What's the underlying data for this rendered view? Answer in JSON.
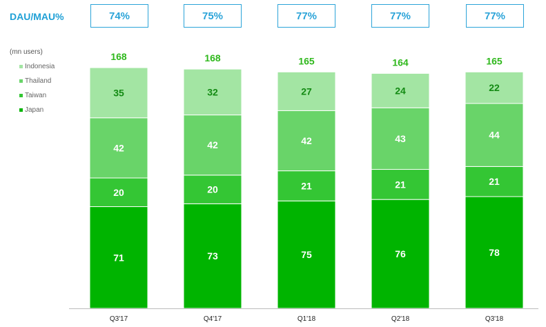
{
  "header": {
    "dau_mau_label": "DAU/MAU%"
  },
  "unit_label": "(mn users)",
  "colors": {
    "accent": "#2aa3d8",
    "Japan": "#00b400",
    "Taiwan": "#34c634",
    "Thailand": "#69d469",
    "Indonesia": "#a3e5a3",
    "total_text": "#2fb81c"
  },
  "chart_data": {
    "type": "bar",
    "stacked": true,
    "categories": [
      "Q3'17",
      "Q4'17",
      "Q1'18",
      "Q2'18",
      "Q3'18"
    ],
    "series": [
      {
        "name": "Japan",
        "values": [
          71,
          73,
          75,
          76,
          78
        ]
      },
      {
        "name": "Taiwan",
        "values": [
          20,
          20,
          21,
          21,
          21
        ]
      },
      {
        "name": "Thailand",
        "values": [
          42,
          42,
          42,
          43,
          44
        ]
      },
      {
        "name": "Indonesia",
        "values": [
          35,
          32,
          27,
          24,
          22
        ]
      }
    ],
    "totals": [
      "168",
      "168",
      "165",
      "164",
      "165"
    ],
    "dau_mau": [
      "74%",
      "75%",
      "77%",
      "77%",
      "77%"
    ],
    "legend": [
      "Indonesia",
      "Thailand",
      "Taiwan",
      "Japan"
    ],
    "ylabel": "(mn users)",
    "ylim": [
      0,
      180
    ],
    "grid": false,
    "legend_position": "top-left"
  }
}
